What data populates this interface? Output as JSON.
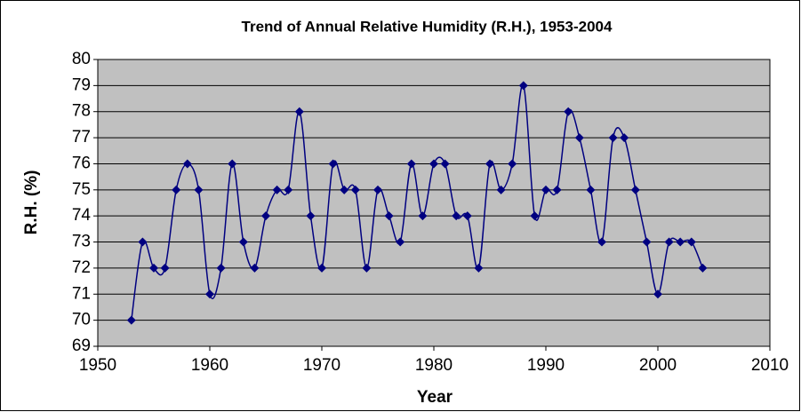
{
  "chart_data": {
    "type": "line",
    "title": "Trend of Annual Relative Humidity (R.H.), 1953-2004",
    "xlabel": "Year",
    "ylabel": "R.H. (%)",
    "x": [
      1953,
      1954,
      1955,
      1956,
      1957,
      1958,
      1959,
      1960,
      1961,
      1962,
      1963,
      1964,
      1965,
      1966,
      1967,
      1968,
      1969,
      1970,
      1971,
      1972,
      1973,
      1974,
      1975,
      1976,
      1977,
      1978,
      1979,
      1980,
      1981,
      1982,
      1983,
      1984,
      1985,
      1986,
      1987,
      1988,
      1989,
      1990,
      1991,
      1992,
      1993,
      1994,
      1995,
      1996,
      1997,
      1998,
      1999,
      2000,
      2001,
      2002,
      2003,
      2004
    ],
    "series": [
      {
        "name": "R.H.",
        "color": "#000080",
        "values": [
          70,
          73,
          72,
          72,
          75,
          76,
          75,
          71,
          72,
          76,
          73,
          72,
          74,
          75,
          75,
          78,
          74,
          72,
          76,
          75,
          75,
          72,
          75,
          74,
          73,
          76,
          74,
          76,
          76,
          74,
          74,
          72,
          76,
          75,
          76,
          79,
          74,
          75,
          75,
          78,
          77,
          75,
          73,
          77,
          77,
          75,
          73,
          71,
          73,
          73,
          73,
          72
        ]
      }
    ],
    "xlim": [
      1950,
      2010
    ],
    "xticks": [
      1950,
      1960,
      1970,
      1980,
      1990,
      2000,
      2010
    ],
    "ylim": [
      69,
      80
    ],
    "yticks": [
      69,
      70,
      71,
      72,
      73,
      74,
      75,
      76,
      77,
      78,
      79,
      80
    ],
    "grid": true,
    "smooth": true,
    "plot_background": "#c0c0c0"
  }
}
